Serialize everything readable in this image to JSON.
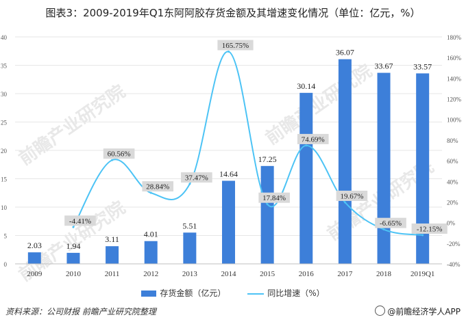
{
  "title": "图表3：2009-2019年Q1东阿阿胶存货金额及其增速变化情况（单位：亿元，%）",
  "colors": {
    "bar": "#3d7fd9",
    "line": "#4cc3f5",
    "label_bg": "#d9d9d9",
    "grid": "#e6e6e6"
  },
  "legend": {
    "bar_label": "存货金额（亿元）",
    "line_label": "同比增速（%）"
  },
  "footer": {
    "source": "资料来源：公司财报 前瞻产业研究院整理",
    "brand": "@前瞻经济学人APP"
  },
  "watermark": "前瞻产业研究院",
  "chart_data": {
    "type": "bar+line",
    "categories": [
      "2009",
      "2010",
      "2011",
      "2012",
      "2013",
      "2014",
      "2015",
      "2016",
      "2017",
      "2018",
      "2019Q1"
    ],
    "series": [
      {
        "name": "存货金额（亿元）",
        "type": "bar",
        "axis": "left",
        "values": [
          2.03,
          1.94,
          3.11,
          4.01,
          5.51,
          14.64,
          17.25,
          30.14,
          36.07,
          33.67,
          33.57
        ],
        "labels": [
          "2.03",
          "1.94",
          "3.11",
          "4.01",
          "5.51",
          "14.64",
          "17.25",
          "30.14",
          "36.07",
          "33.67",
          "33.57"
        ]
      },
      {
        "name": "同比增速（%）",
        "type": "line",
        "axis": "right",
        "values": [
          null,
          -4.41,
          60.56,
          28.84,
          37.47,
          165.75,
          17.84,
          74.69,
          19.67,
          -6.65,
          -12.15
        ],
        "labels": [
          "",
          "-4.41%",
          "60.56%",
          "28.84%",
          "37.47%",
          "165.75%",
          "17.84%",
          "74.69%",
          "19.67%",
          "-6.65%",
          "-12.15%"
        ]
      }
    ],
    "y_left": {
      "min": 0,
      "max": 40,
      "ticks": [
        0,
        5,
        10,
        15,
        20,
        25,
        30,
        35,
        40
      ],
      "tick_labels": [
        "0",
        "5",
        "10",
        "15",
        "20",
        "25",
        "30",
        "35",
        "40"
      ]
    },
    "y_right": {
      "min": -40,
      "max": 180,
      "ticks": [
        -40,
        -20,
        0,
        20,
        40,
        60,
        80,
        100,
        120,
        140,
        160,
        180
      ],
      "tick_labels": [
        "-40%",
        "-20%",
        "0%",
        "20%",
        "40%",
        "60%",
        "80%",
        "100%",
        "120%",
        "140%",
        "160%",
        "180%"
      ]
    }
  }
}
